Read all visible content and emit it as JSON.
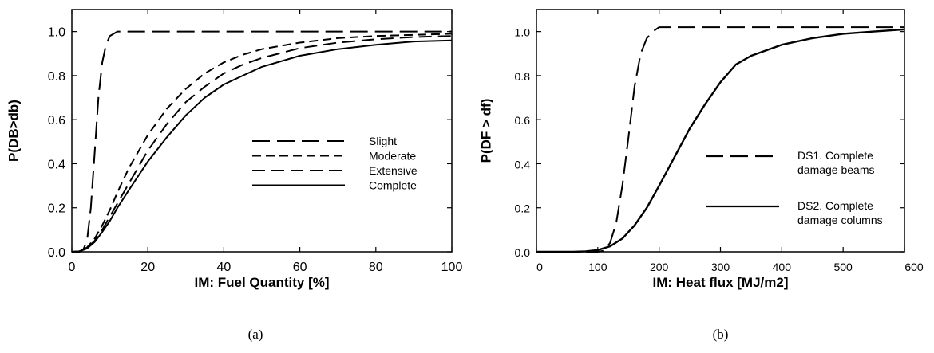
{
  "colors": {
    "line": "#000000",
    "background": "#ffffff"
  },
  "chart_data": [
    {
      "type": "line",
      "caption": "(a)",
      "xlabel": "IM: Fuel Quantity [%]",
      "ylabel": "P(DB>db)",
      "xlim": [
        0,
        100
      ],
      "ylim": [
        0,
        1.1
      ],
      "xticks": [
        0,
        20,
        40,
        60,
        80,
        100
      ],
      "yticks": [
        0.0,
        0.2,
        0.4,
        0.6,
        0.8,
        1.0
      ],
      "xtick_labels": [
        "0",
        "20",
        "40",
        "60",
        "80",
        "100"
      ],
      "ytick_labels": [
        "0.0",
        "0.2",
        "0.4",
        "0.6",
        "0.8",
        "1.0"
      ],
      "grid": false,
      "legend_position": "center-right",
      "series": [
        {
          "name": "Slight",
          "dash": "long",
          "x": [
            0,
            2,
            3,
            4,
            5,
            6,
            7,
            8,
            9,
            10,
            11,
            12,
            13,
            14,
            20,
            40,
            60,
            80,
            100
          ],
          "y": [
            0,
            0,
            0.01,
            0.05,
            0.2,
            0.45,
            0.7,
            0.86,
            0.94,
            0.98,
            0.99,
            1.0,
            1.0,
            1.0,
            1.0,
            1.0,
            1.0,
            1.0,
            1.0
          ]
        },
        {
          "name": "Moderate",
          "dash": "short",
          "x": [
            0,
            2,
            4,
            6,
            8,
            10,
            12,
            15,
            20,
            25,
            30,
            35,
            40,
            45,
            50,
            60,
            70,
            80,
            90,
            100
          ],
          "y": [
            0,
            0.002,
            0.02,
            0.06,
            0.12,
            0.19,
            0.27,
            0.38,
            0.53,
            0.65,
            0.74,
            0.81,
            0.86,
            0.895,
            0.92,
            0.95,
            0.97,
            0.98,
            0.985,
            0.99
          ]
        },
        {
          "name": "Extensive",
          "dash": "medium",
          "x": [
            0,
            2,
            4,
            6,
            8,
            10,
            12,
            15,
            20,
            25,
            30,
            35,
            40,
            45,
            50,
            60,
            70,
            80,
            90,
            100
          ],
          "y": [
            0,
            0.002,
            0.018,
            0.05,
            0.1,
            0.16,
            0.22,
            0.31,
            0.46,
            0.58,
            0.68,
            0.75,
            0.81,
            0.85,
            0.88,
            0.925,
            0.95,
            0.965,
            0.975,
            0.98
          ]
        },
        {
          "name": "Complete",
          "dash": "solid",
          "x": [
            0,
            2,
            4,
            6,
            8,
            10,
            12,
            15,
            20,
            25,
            30,
            35,
            40,
            45,
            50,
            60,
            70,
            80,
            90,
            100
          ],
          "y": [
            0,
            0.002,
            0.015,
            0.045,
            0.09,
            0.14,
            0.2,
            0.28,
            0.41,
            0.52,
            0.62,
            0.7,
            0.76,
            0.8,
            0.84,
            0.89,
            0.92,
            0.94,
            0.955,
            0.96
          ]
        }
      ]
    },
    {
      "type": "line",
      "caption": "(b)",
      "xlabel": "IM: Heat flux [MJ/m2]",
      "ylabel": "P(DF > df)",
      "xlim": [
        0,
        600
      ],
      "ylim": [
        0,
        1.1
      ],
      "xticks": [
        0,
        100,
        200,
        300,
        400,
        500,
        600
      ],
      "yticks": [
        0.0,
        0.2,
        0.4,
        0.6,
        0.8,
        1.0
      ],
      "xtick_labels": [
        "0",
        "100",
        "200",
        "300",
        "400",
        "500",
        "600"
      ],
      "ytick_labels": [
        "0.0",
        "0.2",
        "0.4",
        "0.6",
        "0.8",
        "1.0"
      ],
      "grid": false,
      "legend_position": "lower-right",
      "series": [
        {
          "name": "DS1. Complete damage beams",
          "legend_lines": [
            "DS1. Complete",
            "damage beams"
          ],
          "dash": "long",
          "x": [
            0,
            100,
            110,
            120,
            130,
            140,
            150,
            160,
            170,
            180,
            190,
            200,
            250,
            300,
            400,
            500,
            600
          ],
          "y": [
            0,
            0,
            0.005,
            0.04,
            0.13,
            0.3,
            0.52,
            0.75,
            0.9,
            0.97,
            1.0,
            1.02,
            1.02,
            1.02,
            1.02,
            1.02,
            1.02
          ]
        },
        {
          "name": "DS2. Complete damage columns",
          "legend_lines": [
            "DS2. Complete",
            "damage columns"
          ],
          "dash": "solid",
          "x": [
            0,
            60,
            80,
            100,
            120,
            140,
            160,
            180,
            200,
            225,
            250,
            275,
            300,
            325,
            350,
            400,
            450,
            500,
            550,
            600
          ],
          "y": [
            0,
            0,
            0.002,
            0.008,
            0.025,
            0.06,
            0.12,
            0.2,
            0.3,
            0.43,
            0.56,
            0.67,
            0.77,
            0.85,
            0.89,
            0.94,
            0.97,
            0.99,
            1.0,
            1.01
          ]
        }
      ]
    }
  ]
}
